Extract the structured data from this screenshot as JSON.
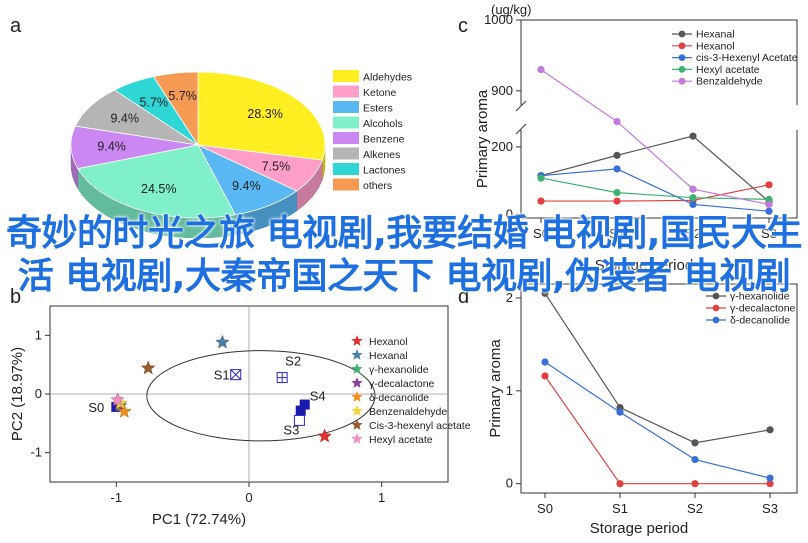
{
  "panels": {
    "a": "a",
    "b": "b",
    "c": "c",
    "d": "d"
  },
  "overlay_text": "奇妙的时光之旅 电视剧,我要结婚 电视剧,国民大生活 电视剧,大秦帝国之天下 电视剧,伪装者 电视剧",
  "chart_data": [
    {
      "panel": "a",
      "type": "pie",
      "title": "",
      "slices": [
        {
          "name": "Aldehydes",
          "value": 28.3,
          "label": "28.3%",
          "color": "#FFEE22"
        },
        {
          "name": "Ketone",
          "value": 7.5,
          "label": "7.5%",
          "color": "#FF9EC8"
        },
        {
          "name": "Esters",
          "value": 9.4,
          "label": "9.4%",
          "color": "#5AB8F5"
        },
        {
          "name": "Alcohols",
          "value": 24.5,
          "label": "24.5%",
          "color": "#7FF0C9"
        },
        {
          "name": "Benzene",
          "value": 9.4,
          "label": "9.4%",
          "color": "#CC88F2"
        },
        {
          "name": "Alkenes",
          "value": 9.4,
          "label": "9.4%",
          "color": "#B5B5B5"
        },
        {
          "name": "Lactones",
          "value": 5.7,
          "label": "5.7%",
          "color": "#2ED6D6"
        },
        {
          "name": "others",
          "value": 5.7,
          "label": "5.7%",
          "color": "#F59A52"
        }
      ],
      "legend_position": "right"
    },
    {
      "panel": "b",
      "type": "scatter",
      "xlabel": "PC1 (72.74%)",
      "ylabel": "PC2 (18.97%)",
      "xlim": [
        -1.5,
        1.5
      ],
      "ylim": [
        -1.5,
        1.5
      ],
      "xticks": [
        "-1",
        "0",
        "1"
      ],
      "yticks": [
        "1",
        "0",
        "-1"
      ],
      "series": [
        {
          "name": "Hexanol",
          "marker": "star",
          "color": "#E03030",
          "x": 0.57,
          "y": -0.72
        },
        {
          "name": "Hexanal",
          "marker": "star",
          "color": "#4F7FA8",
          "x": -0.2,
          "y": 0.88
        },
        {
          "name": "γ-hexanolide",
          "marker": "star",
          "color": "#3CB371",
          "x": -0.97,
          "y": -0.2
        },
        {
          "name": "γ-decalactone",
          "marker": "star",
          "color": "#8A3FA0",
          "x": -0.98,
          "y": -0.18
        },
        {
          "name": "δ-decanolide",
          "marker": "star",
          "color": "#F0901E",
          "x": -0.94,
          "y": -0.3
        },
        {
          "name": "Benzenaldehyde",
          "marker": "star",
          "color": "#F6D23C",
          "x": -0.97,
          "y": -0.16
        },
        {
          "name": "Cis-3-hexenyl acetate",
          "marker": "star",
          "color": "#9A5A2A",
          "x": -0.76,
          "y": 0.44
        },
        {
          "name": "Hexyl acetate",
          "marker": "star",
          "color": "#F28FC0",
          "x": -0.99,
          "y": -0.1
        }
      ],
      "samples": [
        {
          "label": "S0",
          "x": -1.0,
          "y": -0.22
        },
        {
          "label": "S1",
          "x": -0.1,
          "y": 0.33
        },
        {
          "label": "S2",
          "x": 0.25,
          "y": 0.28
        },
        {
          "label": "S3",
          "x": 0.38,
          "y": -0.45
        },
        {
          "label": "S4",
          "x": 0.42,
          "y": -0.18
        }
      ]
    },
    {
      "panel": "c",
      "type": "line",
      "xlabel": "Storage period",
      "ylabel": "Primary aroma",
      "unit": "(ug/kg)",
      "categories": [
        "S0",
        "S1",
        "S2",
        "S3"
      ],
      "yticks_low": [
        "0",
        "200"
      ],
      "yticks_high": [
        "900",
        "1000"
      ],
      "ylim_low": [
        -10,
        250
      ],
      "ylim_high": [
        880,
        1000
      ],
      "series": [
        {
          "name": "Hexanal",
          "color": "#555555",
          "values": [
            115,
            175,
            232,
            38
          ]
        },
        {
          "name": "Hexanol",
          "color": "#E04040",
          "values": [
            40,
            40,
            42,
            88
          ]
        },
        {
          "name": "cis-3-Hexenyl Acetate",
          "color": "#3A6FD8",
          "values": [
            115,
            135,
            30,
            10
          ]
        },
        {
          "name": "Hexyl acetate",
          "color": "#3CB371",
          "values": [
            108,
            65,
            50,
            45
          ]
        },
        {
          "name": "Benzaldehyde",
          "color": "#C07ADC",
          "values": [
            930,
            275,
            75,
            30
          ]
        }
      ],
      "legend_position": "top-right"
    },
    {
      "panel": "d",
      "type": "line",
      "xlabel": "Storage period",
      "ylabel": "Primary aroma",
      "categories": [
        "S0",
        "S1",
        "S2",
        "S3"
      ],
      "yticks": [
        "0",
        "1",
        "2"
      ],
      "ylim": [
        -0.1,
        2.15
      ],
      "series": [
        {
          "name": "γ-hexanolide",
          "color": "#555555",
          "values": [
            2.05,
            0.82,
            0.44,
            0.58
          ]
        },
        {
          "name": "γ-decalactone",
          "color": "#E04040",
          "values": [
            1.16,
            0.0,
            0.0,
            0.0
          ]
        },
        {
          "name": "δ-decanolide",
          "color": "#3A6FD8",
          "values": [
            1.31,
            0.77,
            0.26,
            0.06
          ]
        }
      ],
      "legend_position": "top-right"
    }
  ]
}
